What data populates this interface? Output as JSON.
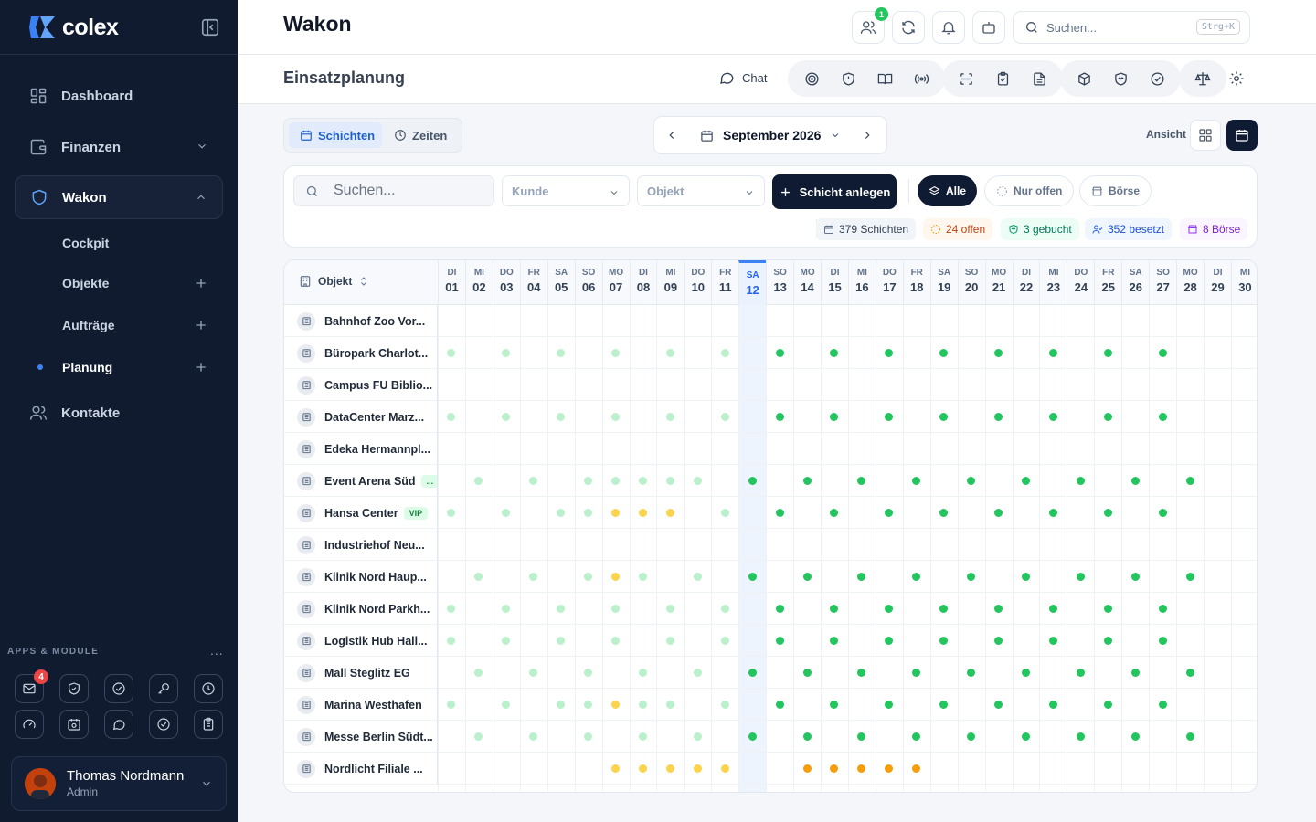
{
  "sidebar": {
    "logo": "colex",
    "nav": [
      {
        "label": "Dashboard"
      },
      {
        "label": "Finanzen"
      },
      {
        "label": "Wakon"
      },
      {
        "label": "Kontakte"
      }
    ],
    "sub": [
      {
        "label": "Cockpit"
      },
      {
        "label": "Objekte"
      },
      {
        "label": "Aufträge"
      },
      {
        "label": "Planung"
      }
    ],
    "apps_label": "APPS & MODULE",
    "apps_more": "...",
    "mail_badge": "4",
    "user": {
      "name": "Thomas Nordmann",
      "role": "Admin"
    }
  },
  "topbar": {
    "title": "Wakon",
    "contacts_badge": "1",
    "search_placeholder": "Suchen...",
    "search_kbd": "Strg+K"
  },
  "subbar": {
    "title": "Einsatzplanung",
    "chat_label": "Chat"
  },
  "toolbar": {
    "tab_shifts": "Schichten",
    "tab_times": "Zeiten",
    "month": "September 2026",
    "view_label": "Ansicht"
  },
  "filters": {
    "search_placeholder": "Suchen...",
    "customer": "Kunde",
    "object": "Objekt",
    "create": "Schicht anlegen",
    "all": "Alle",
    "only_open": "Nur offen",
    "exchange": "Börse"
  },
  "stats": {
    "shifts": "379 Schichten",
    "open": "24 offen",
    "booked": "3 gebucht",
    "assigned": "352 besetzt",
    "exchange": "8 Börse"
  },
  "grid": {
    "object_header": "Objekt",
    "days": [
      {
        "wd": "DI",
        "d": "01"
      },
      {
        "wd": "MI",
        "d": "02"
      },
      {
        "wd": "DO",
        "d": "03"
      },
      {
        "wd": "FR",
        "d": "04"
      },
      {
        "wd": "SA",
        "d": "05"
      },
      {
        "wd": "SO",
        "d": "06"
      },
      {
        "wd": "MO",
        "d": "07"
      },
      {
        "wd": "DI",
        "d": "08"
      },
      {
        "wd": "MI",
        "d": "09"
      },
      {
        "wd": "DO",
        "d": "10"
      },
      {
        "wd": "FR",
        "d": "11"
      },
      {
        "wd": "SA",
        "d": "12"
      },
      {
        "wd": "SO",
        "d": "13"
      },
      {
        "wd": "MO",
        "d": "14"
      },
      {
        "wd": "DI",
        "d": "15"
      },
      {
        "wd": "MI",
        "d": "16"
      },
      {
        "wd": "DO",
        "d": "17"
      },
      {
        "wd": "FR",
        "d": "18"
      },
      {
        "wd": "SA",
        "d": "19"
      },
      {
        "wd": "SO",
        "d": "20"
      },
      {
        "wd": "MO",
        "d": "21"
      },
      {
        "wd": "DI",
        "d": "22"
      },
      {
        "wd": "MI",
        "d": "23"
      },
      {
        "wd": "DO",
        "d": "24"
      },
      {
        "wd": "FR",
        "d": "25"
      },
      {
        "wd": "SA",
        "d": "26"
      },
      {
        "wd": "SO",
        "d": "27"
      },
      {
        "wd": "MO",
        "d": "28"
      },
      {
        "wd": "DI",
        "d": "29"
      },
      {
        "wd": "MI",
        "d": "30"
      }
    ],
    "today_index": 11,
    "rows": [
      {
        "name": "Bahnhof Zoo Vor...",
        "tag": "",
        "cells": {}
      },
      {
        "name": "Büropark Charlot...",
        "tag": "",
        "cells": {
          "0": "l",
          "2": "l",
          "4": "l",
          "6": "l",
          "8": "l",
          "10": "l",
          "12": "g",
          "14": "g",
          "16": "g",
          "18": "g",
          "20": "g",
          "22": "g",
          "24": "g",
          "26": "g"
        }
      },
      {
        "name": "Campus FU Biblio...",
        "tag": "",
        "cells": {}
      },
      {
        "name": "DataCenter Marz...",
        "tag": "",
        "cells": {
          "0": "l",
          "2": "l",
          "4": "l",
          "6": "l",
          "8": "l",
          "10": "l",
          "12": "g",
          "14": "g",
          "16": "g",
          "18": "g",
          "20": "g",
          "22": "g",
          "24": "g",
          "26": "g"
        }
      },
      {
        "name": "Edeka Hermannpl...",
        "tag": "",
        "cells": {}
      },
      {
        "name": "Event Arena Süd",
        "tag": "...",
        "cells": {
          "1": "l",
          "3": "l",
          "5": "l",
          "6": "l",
          "7": "l",
          "8": "l",
          "9": "l",
          "11": "g",
          "13": "g",
          "15": "g",
          "17": "g",
          "19": "g",
          "21": "g",
          "23": "g",
          "25": "g",
          "27": "g"
        }
      },
      {
        "name": "Hansa Center",
        "tag": "VIP",
        "cells": {
          "0": "l",
          "2": "l",
          "4": "l",
          "5": "l",
          "6": "y",
          "7": "y",
          "8": "y",
          "10": "l",
          "12": "g",
          "14": "g",
          "16": "g",
          "18": "g",
          "20": "g",
          "22": "g",
          "24": "g",
          "26": "g"
        }
      },
      {
        "name": "Industriehof Neu...",
        "tag": "",
        "cells": {}
      },
      {
        "name": "Klinik Nord Haup...",
        "tag": "",
        "cells": {
          "1": "l",
          "3": "l",
          "5": "l",
          "6": "y",
          "7": "l",
          "9": "l",
          "11": "g",
          "13": "g",
          "15": "g",
          "17": "g",
          "19": "g",
          "21": "g",
          "23": "g",
          "25": "g",
          "27": "g"
        }
      },
      {
        "name": "Klinik Nord Parkh...",
        "tag": "",
        "cells": {
          "0": "l",
          "2": "l",
          "4": "l",
          "6": "l",
          "8": "l",
          "10": "l",
          "12": "g",
          "14": "g",
          "16": "g",
          "18": "g",
          "20": "g",
          "22": "g",
          "24": "g",
          "26": "g"
        }
      },
      {
        "name": "Logistik Hub Hall...",
        "tag": "",
        "cells": {
          "0": "l",
          "2": "l",
          "4": "l",
          "6": "l",
          "8": "l",
          "10": "l",
          "12": "g",
          "14": "g",
          "16": "g",
          "18": "g",
          "20": "g",
          "22": "g",
          "24": "g",
          "26": "g"
        }
      },
      {
        "name": "Mall Steglitz EG",
        "tag": "",
        "cells": {
          "1": "l",
          "3": "l",
          "5": "l",
          "7": "l",
          "9": "l",
          "11": "g",
          "13": "g",
          "15": "g",
          "17": "g",
          "19": "g",
          "21": "g",
          "23": "g",
          "25": "g",
          "27": "g"
        }
      },
      {
        "name": "Marina Westhafen",
        "tag": "",
        "cells": {
          "0": "l",
          "2": "l",
          "4": "l",
          "5": "l",
          "6": "y",
          "7": "l",
          "8": "l",
          "10": "l",
          "12": "g",
          "14": "g",
          "16": "g",
          "18": "g",
          "20": "g",
          "22": "g",
          "24": "g",
          "26": "g"
        }
      },
      {
        "name": "Messe Berlin Südt...",
        "tag": "",
        "cells": {
          "1": "l",
          "3": "l",
          "5": "l",
          "7": "l",
          "9": "l",
          "11": "g",
          "13": "g",
          "15": "g",
          "17": "g",
          "19": "g",
          "21": "g",
          "23": "g",
          "25": "g",
          "27": "g"
        }
      },
      {
        "name": "Nordlicht Filiale ...",
        "tag": "",
        "cells": {
          "6": "y",
          "7": "y",
          "8": "y",
          "9": "y",
          "10": "y",
          "13": "o",
          "14": "o",
          "15": "o",
          "16": "o",
          "17": "o"
        }
      }
    ]
  },
  "colors": {
    "sidebar": "#101b30",
    "primary": "#0f1b33",
    "accent": "#3b82f6",
    "dot_light_green": "#bbf0cc",
    "dot_green": "#22c55e",
    "dot_light_orange": "#fcd34d",
    "dot_orange": "#f59e0b"
  }
}
